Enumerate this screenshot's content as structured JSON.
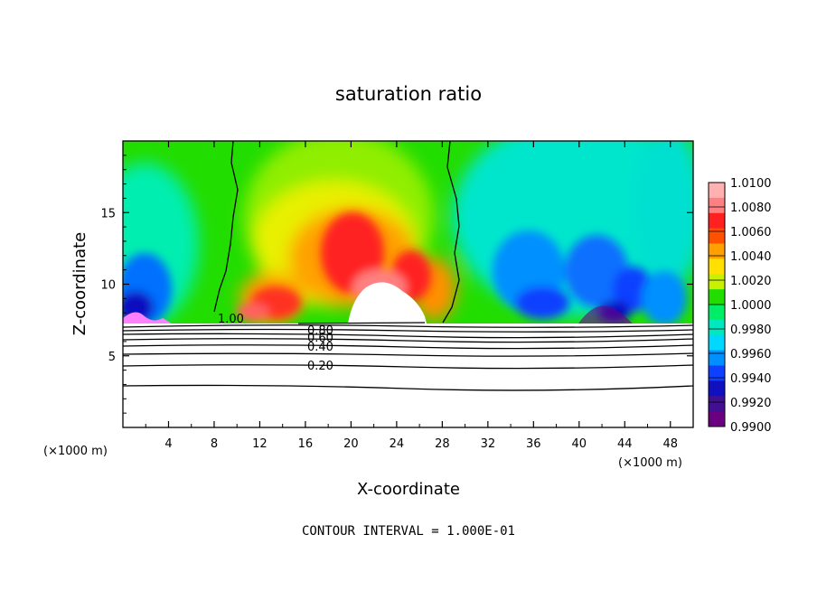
{
  "chart_data": {
    "type": "heatmap",
    "title": "saturation ratio",
    "xlabel": "X-coordinate",
    "ylabel": "Z-coordinate",
    "x_unit": "(×1000 m)",
    "xlim": [
      0,
      50
    ],
    "ylim": [
      0,
      20
    ],
    "x_ticks": [
      "4",
      "8",
      "12",
      "16",
      "20",
      "24",
      "28",
      "32",
      "36",
      "40",
      "44",
      "48"
    ],
    "y_ticks": [
      "5",
      "10",
      "15"
    ],
    "colorbar": {
      "levels": [
        "1.0100",
        "1.0080",
        "1.0060",
        "1.0040",
        "1.0020",
        "1.0000",
        "0.9980",
        "0.9960",
        "0.9940",
        "0.9920",
        "0.9900"
      ],
      "colors": [
        "#ffb0b0",
        "#ff8080",
        "#ff2020",
        "#ff5000",
        "#ffa000",
        "#ffe000",
        "#c8f000",
        "#22dd00",
        "#00ee66",
        "#00e8c0",
        "#00d8ff",
        "#0090ff",
        "#1040ff",
        "#1010c0",
        "#401090",
        "#6a0080"
      ]
    },
    "contour_labels": [
      "1.00",
      "0.80",
      "0.60",
      "0.40",
      "0.20"
    ],
    "footer": "CONTOUR INTERVAL = 1.000E-01"
  }
}
